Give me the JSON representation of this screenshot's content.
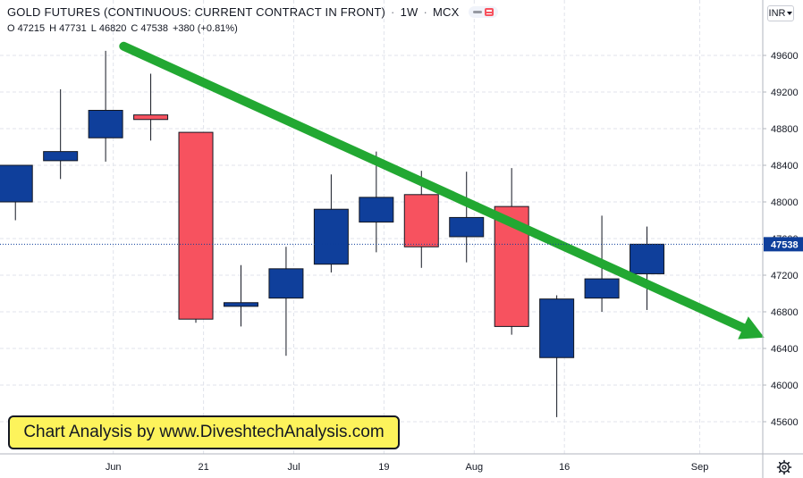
{
  "header": {
    "title": "GOLD FUTURES (CONTINUOUS: CURRENT CONTRACT IN FRONT)",
    "interval": "1W",
    "exchange": "MCX",
    "ohlc": {
      "o_label": "O",
      "o": "47215",
      "h_label": "H",
      "h": "47731",
      "l_label": "L",
      "l": "46820",
      "c_label": "C",
      "c": "47538",
      "change": "+380 (+0.81%)"
    }
  },
  "currency": {
    "label": "INR"
  },
  "banner": {
    "text": "Chart Analysis by www.DiveshtechAnalysis.com"
  },
  "icons": {
    "settings": "gear-icon",
    "currency_chevron": "chevron-down-icon"
  },
  "colors": {
    "up": "#0f3f9b",
    "down": "#f7525f",
    "trend": "#22a832",
    "price_tag": "#0f3f9b",
    "grid": "#e0e3eb"
  },
  "chart_data": {
    "type": "candlestick",
    "ylim": [
      45400,
      50000
    ],
    "y_ticks": [
      45600,
      46000,
      46400,
      46800,
      47200,
      47600,
      48000,
      48400,
      48800,
      49200,
      49600
    ],
    "x_ticks": [
      {
        "label": "Jun",
        "slot": 2.67
      },
      {
        "label": "21",
        "slot": 4.67
      },
      {
        "label": "Jul",
        "slot": 6.67
      },
      {
        "label": "19",
        "slot": 8.67
      },
      {
        "label": "Aug",
        "slot": 10.67
      },
      {
        "label": "16",
        "slot": 12.67
      },
      {
        "label": "Sep",
        "slot": 15.67
      }
    ],
    "candles": [
      {
        "o": 48000,
        "h": 48400,
        "l": 47800,
        "c": 48400
      },
      {
        "o": 48450,
        "h": 49230,
        "l": 48250,
        "c": 48550
      },
      {
        "o": 48700,
        "h": 49650,
        "l": 48440,
        "c": 49000
      },
      {
        "o": 48950,
        "h": 49400,
        "l": 48670,
        "c": 48900
      },
      {
        "o": 48760,
        "h": 48760,
        "l": 46680,
        "c": 46720
      },
      {
        "o": 46860,
        "h": 47310,
        "l": 46640,
        "c": 46900
      },
      {
        "o": 46950,
        "h": 47510,
        "l": 46320,
        "c": 47270
      },
      {
        "o": 47320,
        "h": 48300,
        "l": 47230,
        "c": 47920
      },
      {
        "o": 47780,
        "h": 48550,
        "l": 47450,
        "c": 48050
      },
      {
        "o": 48080,
        "h": 48340,
        "l": 47280,
        "c": 47510
      },
      {
        "o": 47620,
        "h": 48330,
        "l": 47340,
        "c": 47830
      },
      {
        "o": 47950,
        "h": 48370,
        "l": 46550,
        "c": 46640
      },
      {
        "o": 46300,
        "h": 46980,
        "l": 45650,
        "c": 46940
      },
      {
        "o": 46950,
        "h": 47850,
        "l": 46800,
        "c": 47160
      },
      {
        "o": 47215,
        "h": 47731,
        "l": 46820,
        "c": 47538
      }
    ],
    "last_price": "47538",
    "trendline": {
      "start": {
        "slot": 2.9,
        "y": 49700
      },
      "end": {
        "slot": 17.1,
        "y": 46520
      }
    }
  }
}
